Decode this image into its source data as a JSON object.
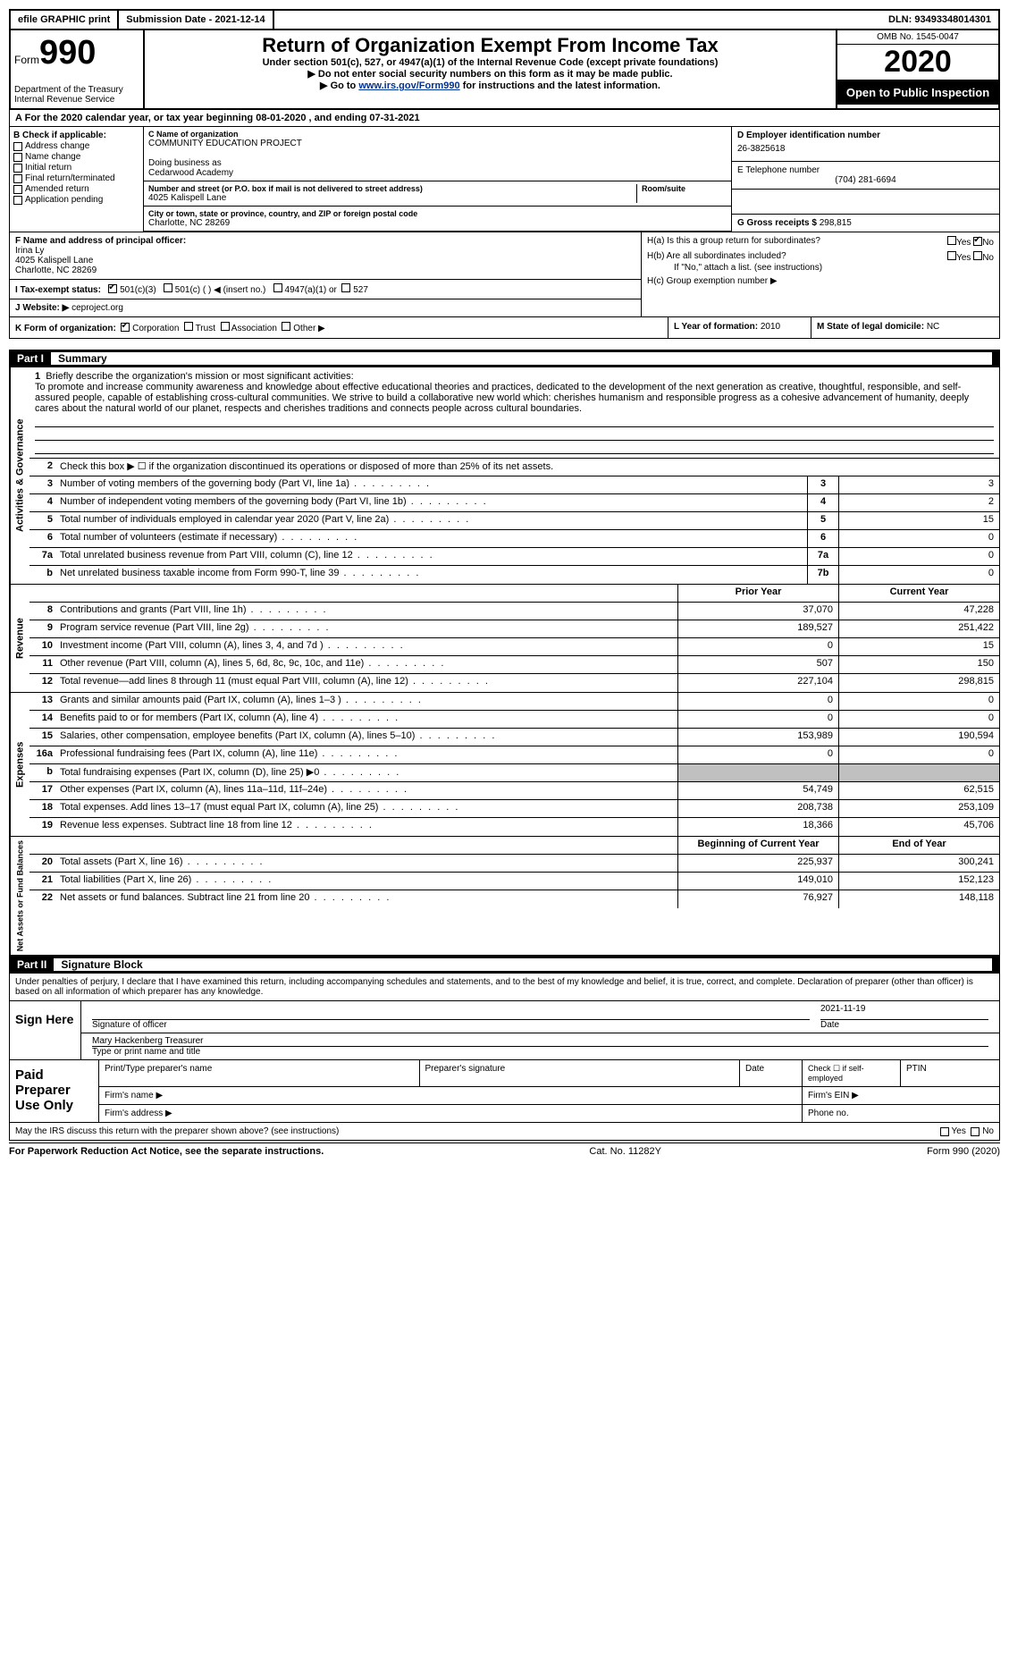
{
  "top": {
    "efile": "efile GRAPHIC print",
    "submission": "Submission Date - 2021-12-14",
    "dln": "DLN: 93493348014301"
  },
  "header": {
    "form_label": "Form",
    "form_number": "990",
    "dept": "Department of the Treasury\nInternal Revenue Service",
    "title": "Return of Organization Exempt From Income Tax",
    "sub1": "Under section 501(c), 527, or 4947(a)(1) of the Internal Revenue Code (except private foundations)",
    "sub2": "▶ Do not enter social security numbers on this form as it may be made public.",
    "sub3_pre": "▶ Go to ",
    "sub3_link": "www.irs.gov/Form990",
    "sub3_post": " for instructions and the latest information.",
    "omb": "OMB No. 1545-0047",
    "year": "2020",
    "open": "Open to Public Inspection"
  },
  "a": {
    "text": "For the 2020 calendar year, or tax year beginning 08-01-2020   , and ending 07-31-2021"
  },
  "b": {
    "label": "B Check if applicable:",
    "items": [
      "Address change",
      "Name change",
      "Initial return",
      "Final return/terminated",
      "Amended return",
      "Application pending"
    ]
  },
  "c": {
    "name_lbl": "C Name of organization",
    "name": "COMMUNITY EDUCATION PROJECT",
    "dba_lbl": "Doing business as",
    "dba": "Cedarwood Academy",
    "street_lbl": "Number and street (or P.O. box if mail is not delivered to street address)",
    "street": "4025 Kalispell Lane",
    "room_lbl": "Room/suite",
    "city_lbl": "City or town, state or province, country, and ZIP or foreign postal code",
    "city": "Charlotte, NC  28269"
  },
  "d": {
    "lbl": "D Employer identification number",
    "val": "26-3825618"
  },
  "e": {
    "lbl": "E Telephone number",
    "val": "(704) 281-6694"
  },
  "g": {
    "lbl": "G Gross receipts $",
    "val": "298,815"
  },
  "f": {
    "lbl": "F  Name and address of principal officer:",
    "name": "Irina Ly",
    "addr1": "4025 Kalispell Lane",
    "addr2": "Charlotte, NC  28269"
  },
  "h": {
    "a": "H(a)  Is this a group return for subordinates?",
    "b": "H(b)  Are all subordinates included?",
    "b2": "If \"No,\" attach a list. (see instructions)",
    "c": "H(c)  Group exemption number ▶",
    "yes": "Yes",
    "no": "No"
  },
  "i": {
    "lbl": "I   Tax-exempt status:",
    "o1": "501(c)(3)",
    "o2": "501(c) (  ) ◀ (insert no.)",
    "o3": "4947(a)(1) or",
    "o4": "527"
  },
  "j": {
    "lbl": "J  Website: ▶",
    "val": "ceproject.org"
  },
  "k": {
    "lbl": "K Form of organization:",
    "o1": "Corporation",
    "o2": "Trust",
    "o3": "Association",
    "o4": "Other ▶"
  },
  "l": {
    "lbl": "L Year of formation:",
    "val": "2010"
  },
  "m": {
    "lbl": "M State of legal domicile:",
    "val": "NC"
  },
  "part1": {
    "num": "Part I",
    "title": "Summary"
  },
  "sidebars": {
    "ag": "Activities & Governance",
    "rev": "Revenue",
    "exp": "Expenses",
    "na": "Net Assets or Fund Balances"
  },
  "l1": {
    "n": "1",
    "d": "Briefly describe the organization's mission or most significant activities:",
    "mission": "To promote and increase community awareness and knowledge about effective educational theories and practices, dedicated to the development of the next generation as creative, thoughtful, responsible, and self-assured people, capable of establishing cross-cultural communities. We strive to build a collaborative new world which: cherishes humanism and responsible progress as a cohesive advancement of humanity, deeply cares about the natural world of our planet, respects and cherishes traditions and connects people across cultural boundaries."
  },
  "l2": {
    "n": "2",
    "d": "Check this box ▶ ☐  if the organization discontinued its operations or disposed of more than 25% of its net assets."
  },
  "govlines": [
    {
      "n": "3",
      "d": "Number of voting members of the governing body (Part VI, line 1a)",
      "nb": "3",
      "v": "3"
    },
    {
      "n": "4",
      "d": "Number of independent voting members of the governing body (Part VI, line 1b)",
      "nb": "4",
      "v": "2"
    },
    {
      "n": "5",
      "d": "Total number of individuals employed in calendar year 2020 (Part V, line 2a)",
      "nb": "5",
      "v": "15"
    },
    {
      "n": "6",
      "d": "Total number of volunteers (estimate if necessary)",
      "nb": "6",
      "v": "0"
    },
    {
      "n": "7a",
      "d": "Total unrelated business revenue from Part VIII, column (C), line 12",
      "nb": "7a",
      "v": "0"
    },
    {
      "n": "b",
      "d": "Net unrelated business taxable income from Form 990-T, line 39",
      "nb": "7b",
      "v": "0"
    }
  ],
  "pyhdr": {
    "d": "",
    "v": "Prior Year",
    "v2": "Current Year"
  },
  "revlines": [
    {
      "n": "8",
      "d": "Contributions and grants (Part VIII, line 1h)",
      "v": "37,070",
      "v2": "47,228"
    },
    {
      "n": "9",
      "d": "Program service revenue (Part VIII, line 2g)",
      "v": "189,527",
      "v2": "251,422"
    },
    {
      "n": "10",
      "d": "Investment income (Part VIII, column (A), lines 3, 4, and 7d )",
      "v": "0",
      "v2": "15"
    },
    {
      "n": "11",
      "d": "Other revenue (Part VIII, column (A), lines 5, 6d, 8c, 9c, 10c, and 11e)",
      "v": "507",
      "v2": "150"
    },
    {
      "n": "12",
      "d": "Total revenue—add lines 8 through 11 (must equal Part VIII, column (A), line 12)",
      "v": "227,104",
      "v2": "298,815"
    }
  ],
  "explines": [
    {
      "n": "13",
      "d": "Grants and similar amounts paid (Part IX, column (A), lines 1–3 )",
      "v": "0",
      "v2": "0"
    },
    {
      "n": "14",
      "d": "Benefits paid to or for members (Part IX, column (A), line 4)",
      "v": "0",
      "v2": "0"
    },
    {
      "n": "15",
      "d": "Salaries, other compensation, employee benefits (Part IX, column (A), lines 5–10)",
      "v": "153,989",
      "v2": "190,594"
    },
    {
      "n": "16a",
      "d": "Professional fundraising fees (Part IX, column (A), line 11e)",
      "v": "0",
      "v2": "0"
    },
    {
      "n": "b",
      "d": "Total fundraising expenses (Part IX, column (D), line 25) ▶0",
      "v": "",
      "v2": "",
      "shade": true
    },
    {
      "n": "17",
      "d": "Other expenses (Part IX, column (A), lines 11a–11d, 11f–24e)",
      "v": "54,749",
      "v2": "62,515"
    },
    {
      "n": "18",
      "d": "Total expenses. Add lines 13–17 (must equal Part IX, column (A), line 25)",
      "v": "208,738",
      "v2": "253,109"
    },
    {
      "n": "19",
      "d": "Revenue less expenses. Subtract line 18 from line 12",
      "v": "18,366",
      "v2": "45,706"
    }
  ],
  "nahdr": {
    "d": "",
    "v": "Beginning of Current Year",
    "v2": "End of Year"
  },
  "nalines": [
    {
      "n": "20",
      "d": "Total assets (Part X, line 16)",
      "v": "225,937",
      "v2": "300,241"
    },
    {
      "n": "21",
      "d": "Total liabilities (Part X, line 26)",
      "v": "149,010",
      "v2": "152,123"
    },
    {
      "n": "22",
      "d": "Net assets or fund balances. Subtract line 21 from line 20",
      "v": "76,927",
      "v2": "148,118"
    }
  ],
  "part2": {
    "num": "Part II",
    "title": "Signature Block"
  },
  "sig": {
    "decl": "Under penalties of perjury, I declare that I have examined this return, including accompanying schedules and statements, and to the best of my knowledge and belief, it is true, correct, and complete. Declaration of preparer (other than officer) is based on all information of which preparer has any knowledge.",
    "sign_here": "Sign Here",
    "sig_officer": "Signature of officer",
    "date": "Date",
    "sig_date": "2021-11-19",
    "name": "Mary Hackenberg Treasurer",
    "name_lbl": "Type or print name and title"
  },
  "prep": {
    "label": "Paid Preparer Use Only",
    "h1": "Print/Type preparer's name",
    "h2": "Preparer's signature",
    "h3": "Date",
    "h4": "Check ☐ if self-employed",
    "h5": "PTIN",
    "fn": "Firm's name    ▶",
    "fein": "Firm's EIN ▶",
    "fa": "Firm's address ▶",
    "ph": "Phone no."
  },
  "discuss": {
    "q": "May the IRS discuss this return with the preparer shown above? (see instructions)",
    "yes": "Yes",
    "no": "No"
  },
  "footer": {
    "l": "For Paperwork Reduction Act Notice, see the separate instructions.",
    "c": "Cat. No. 11282Y",
    "r": "Form 990 (2020)"
  }
}
